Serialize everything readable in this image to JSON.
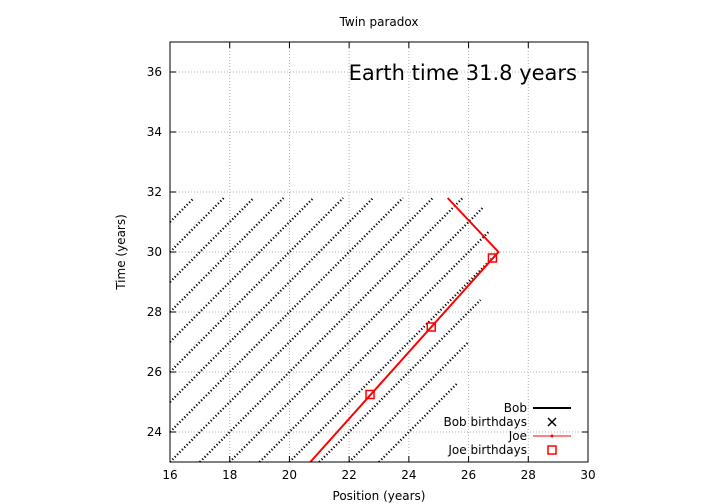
{
  "chart_data": {
    "type": "line",
    "title": "Twin paradox",
    "xlabel": "Position (years)",
    "ylabel": "Time (years)",
    "xlim": [
      16,
      30
    ],
    "ylim": [
      23,
      37
    ],
    "xticks": [
      16,
      18,
      20,
      22,
      24,
      26,
      28,
      30
    ],
    "yticks": [
      24,
      26,
      28,
      30,
      32,
      34,
      36
    ],
    "grid": true,
    "legend_position": "bottom-right",
    "annotation": "Earth time 31.8 years",
    "series": [
      {
        "name": "Bob",
        "style": "dotted lines of slope 1",
        "color": "#000000",
        "segments": [
          {
            "x": [
              16.0,
              16.8
            ],
            "y": [
              31.0,
              31.8
            ]
          },
          {
            "x": [
              16.0,
              17.8
            ],
            "y": [
              30.0,
              31.8
            ]
          },
          {
            "x": [
              16.0,
              18.8
            ],
            "y": [
              29.0,
              31.8
            ]
          },
          {
            "x": [
              16.0,
              19.8
            ],
            "y": [
              28.0,
              31.8
            ]
          },
          {
            "x": [
              16.0,
              20.8
            ],
            "y": [
              27.0,
              31.8
            ]
          },
          {
            "x": [
              16.0,
              21.8
            ],
            "y": [
              26.0,
              31.8
            ]
          },
          {
            "x": [
              16.0,
              22.8
            ],
            "y": [
              25.0,
              31.8
            ]
          },
          {
            "x": [
              16.0,
              23.8
            ],
            "y": [
              24.0,
              31.8
            ]
          },
          {
            "x": [
              16.0,
              24.8
            ],
            "y": [
              23.0,
              31.8
            ]
          },
          {
            "x": [
              17.0,
              25.8
            ],
            "y": [
              23.0,
              31.8
            ]
          },
          {
            "x": [
              18.0,
              26.5
            ],
            "y": [
              23.0,
              31.5
            ]
          },
          {
            "x": [
              19.0,
              26.7
            ],
            "y": [
              23.0,
              30.7
            ]
          },
          {
            "x": [
              20.0,
              26.8
            ],
            "y": [
              23.0,
              29.8
            ]
          },
          {
            "x": [
              21.0,
              26.4
            ],
            "y": [
              23.0,
              28.4
            ]
          },
          {
            "x": [
              22.0,
              26.0
            ],
            "y": [
              23.0,
              27.0
            ]
          },
          {
            "x": [
              23.0,
              25.6
            ],
            "y": [
              23.0,
              25.6
            ]
          }
        ]
      },
      {
        "name": "Joe",
        "color": "#ff0000",
        "x": [
          20.7,
          27.0,
          25.3
        ],
        "y": [
          23.0,
          30.0,
          31.8
        ]
      },
      {
        "name": "Joe birthdays",
        "color": "#ff0000",
        "marker": "square",
        "x": [
          22.7,
          24.75,
          26.8
        ],
        "y": [
          25.25,
          27.5,
          29.8
        ]
      },
      {
        "name": "Bob birthdays",
        "color": "#000000",
        "marker": "x",
        "x": [],
        "y": []
      }
    ],
    "legend": [
      {
        "name": "Bob",
        "kind": "dotline",
        "color": "#000000"
      },
      {
        "name": "Bob birthdays",
        "kind": "x",
        "color": "#000000"
      },
      {
        "name": "Joe",
        "kind": "line",
        "color": "#ff0000"
      },
      {
        "name": "Joe birthdays",
        "kind": "square",
        "color": "#ff0000"
      }
    ]
  }
}
